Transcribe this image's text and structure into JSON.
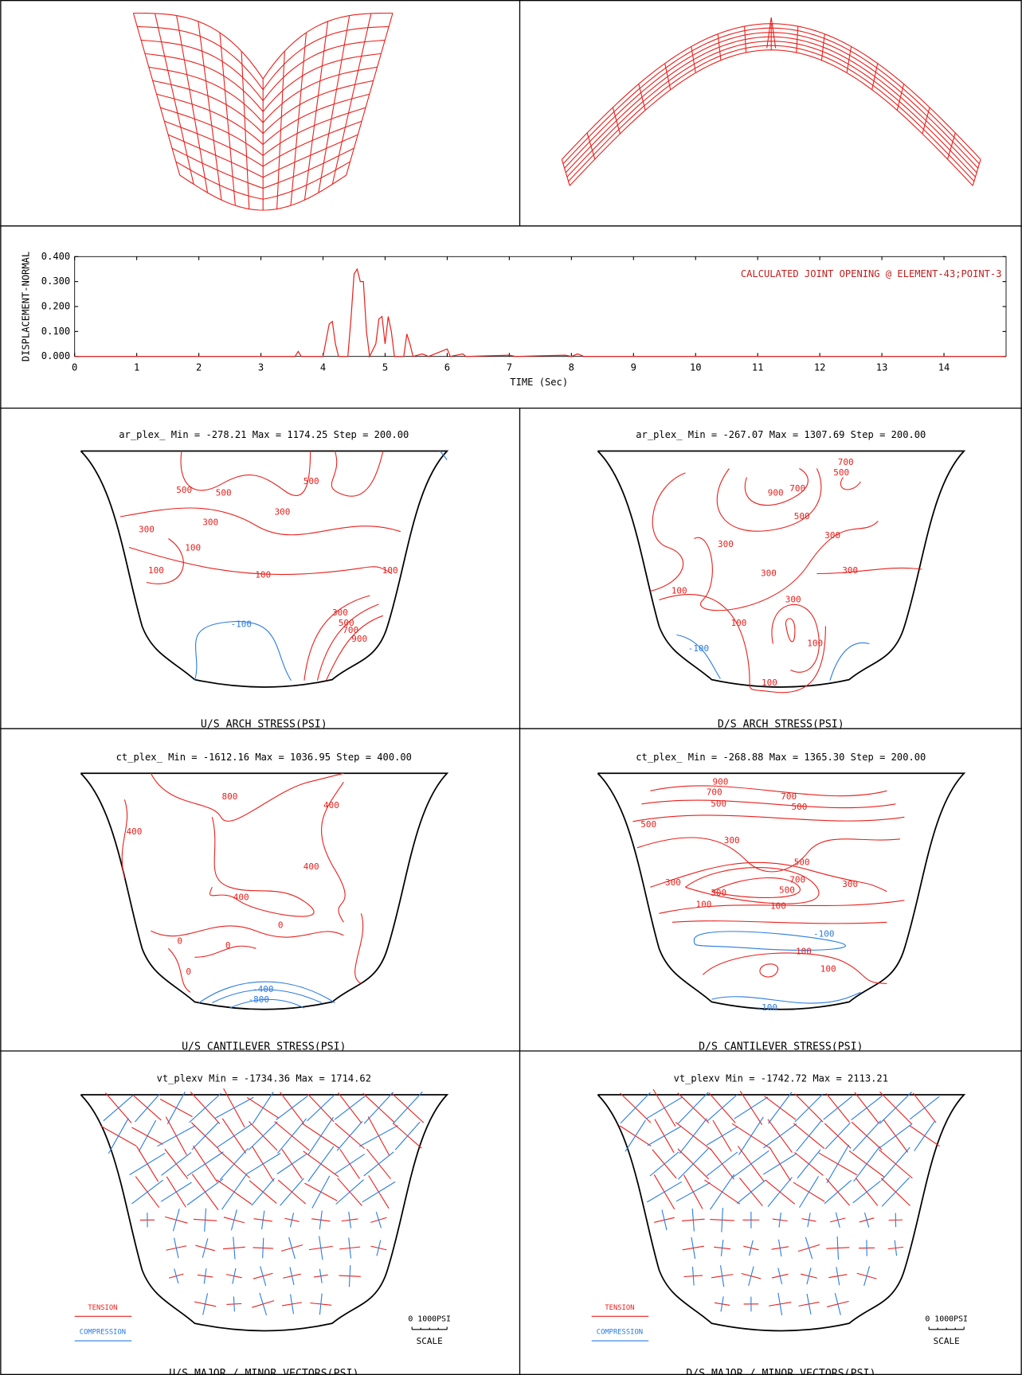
{
  "chart_data": {
    "type": "line",
    "title": "CALCULATED JOINT OPENING @ ELEMENT-43;POINT-3",
    "xlabel": "TIME (Sec)",
    "ylabel": "DISPLACEMENT-NORMAL",
    "x": [
      0,
      3.5,
      3.55,
      3.6,
      3.65,
      4.0,
      4.1,
      4.15,
      4.2,
      4.25,
      4.4,
      4.45,
      4.5,
      4.55,
      4.6,
      4.65,
      4.7,
      4.75,
      4.85,
      4.9,
      4.95,
      5.0,
      5.05,
      5.1,
      5.15,
      5.3,
      5.35,
      5.4,
      5.45,
      5.6,
      5.7,
      5.9,
      6.0,
      6.05,
      6.25,
      6.3,
      7.0,
      7.1,
      7.9,
      8.0,
      8.1,
      8.2,
      15
    ],
    "series": [
      {
        "color": "#e8201c",
        "values": [
          0,
          0,
          0,
          0.02,
          0,
          0,
          0.13,
          0.14,
          0.05,
          0,
          0,
          0.15,
          0.33,
          0.35,
          0.3,
          0.3,
          0.1,
          0,
          0.05,
          0.15,
          0.16,
          0.05,
          0.16,
          0.1,
          0,
          0,
          0.09,
          0.05,
          0,
          0.01,
          0,
          0.02,
          0.03,
          0,
          0.01,
          0,
          0.005,
          0,
          0.005,
          0,
          0.01,
          0,
          0
        ]
      }
    ],
    "xlim": [
      0,
      15
    ],
    "xticks": [
      0,
      1,
      2,
      3,
      4,
      5,
      6,
      7,
      8,
      9,
      10,
      11,
      12,
      13,
      14
    ],
    "ylim": [
      0,
      0.4
    ],
    "yticks": [
      {
        "value": 0,
        "label": "0.000"
      },
      {
        "value": 0.1,
        "label": "0.100"
      },
      {
        "value": 0.2,
        "label": "0.200"
      },
      {
        "value": 0.3,
        "label": "0.300"
      },
      {
        "value": 0.4,
        "label": "0.400"
      }
    ]
  },
  "panels": [
    {
      "header": "ar_plex_    Min = -278.21    Max = 1174.25   Step = 200.00",
      "caption": "U/S ARCH STRESS(PSI)",
      "contour_labels": [
        "500",
        "500",
        "500",
        "300",
        "300",
        "300",
        "100",
        "100",
        "100",
        "100",
        "-100",
        "300",
        "500",
        "700",
        "900"
      ]
    },
    {
      "header": "ar_plex_    Min = -267.07    Max = 1307.69   Step = 200.00",
      "caption": "D/S ARCH STRESS(PSI)",
      "contour_labels": [
        "700",
        "500",
        "900",
        "700",
        "500",
        "300",
        "300",
        "300",
        "300",
        "300",
        "100",
        "100",
        "100",
        "-100",
        "100"
      ]
    },
    {
      "header": "ct_plex_    Min = -1612.16    Max = 1036.95   Step = 400.00",
      "caption": "U/S CANTILEVER STRESS(PSI)",
      "contour_labels": [
        "800",
        "400",
        "400",
        "400",
        "400",
        "0",
        "0",
        "0",
        "0",
        "-400",
        "-800"
      ]
    },
    {
      "header": "ct_plex_    Min = -268.88    Max = 1365.30   Step = 200.00",
      "caption": "D/S CANTILEVER STRESS(PSI)",
      "contour_labels": [
        "900",
        "700",
        "500",
        "700",
        "500",
        "500",
        "300",
        "500",
        "700",
        "500",
        "300",
        "300",
        "300",
        "100",
        "100",
        "-100",
        "100",
        "100",
        "-100"
      ]
    },
    {
      "header": "vt_plexv    Min = -1734.36    Max = 1714.62",
      "caption": "U/S MAJOR / MINOR  VECTORS(PSI)",
      "legend": [
        "TENSION",
        "COMPRESSION"
      ],
      "scale": "0 1000PSI",
      "scale_title": "SCALE"
    },
    {
      "header": "vt_plexv    Min = -1742.72    Max = 2113.21",
      "caption": "D/S MAJOR / MINOR  VECTORS(PSI)",
      "legend": [
        "TENSION",
        "COMPRESSION"
      ],
      "scale": "0 1000PSI",
      "scale_title": "SCALE"
    }
  ]
}
